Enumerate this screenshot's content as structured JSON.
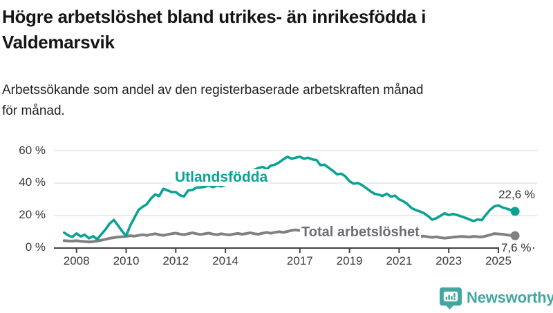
{
  "header": {
    "title_lines": [
      "Högre arbetslöshet bland utrikes- än inrikesfödda i",
      "Valdemarsvik"
    ],
    "subtitle_lines": [
      "Arbetssökande som andel av den registerbaserade arbetskraften månad",
      "för månad."
    ]
  },
  "footer": {
    "brand": "Newsworthy"
  },
  "chart_data": {
    "type": "line",
    "title": "Högre arbetslöshet bland utrikes- än inrikesfödda i Valdemarsvik",
    "subtitle": "Arbetssökande som andel av den registerbaserade arbetskraften månad för månad.",
    "unit": "%",
    "ylim": [
      0,
      60
    ],
    "grid": "horizontal",
    "legend_position": "inline-labels",
    "colors": {
      "foreign_born": "#0aa294",
      "total": "#818181",
      "grid": "#e0e0e0",
      "axis": "#414141"
    },
    "y_ticks": [
      {
        "value": 0,
        "label": "0 %"
      },
      {
        "value": 20,
        "label": "20 %"
      },
      {
        "value": 40,
        "label": "40 %"
      },
      {
        "value": 60,
        "label": "60 %"
      }
    ],
    "x_ticks": [
      {
        "year": 2008,
        "label": "2008"
      },
      {
        "year": 2010,
        "label": "2010"
      },
      {
        "year": 2012,
        "label": "2012"
      },
      {
        "year": 2014,
        "label": "2014"
      },
      {
        "year": 2017,
        "label": "2017"
      },
      {
        "year": 2019,
        "label": "2019"
      },
      {
        "year": 2021,
        "label": "2021"
      },
      {
        "year": 2023,
        "label": "2023"
      },
      {
        "year": 2025,
        "label": "2025"
      }
    ],
    "series": [
      {
        "name": "Utlandsfödda",
        "color": "#0aa294",
        "end_value": 22.6,
        "end_label": "22,6 %",
        "points": [
          [
            2007.5,
            9.5
          ],
          [
            2007.67,
            7.8
          ],
          [
            2007.83,
            6.8
          ],
          [
            2008.0,
            9.0
          ],
          [
            2008.17,
            7.2
          ],
          [
            2008.33,
            8.2
          ],
          [
            2008.5,
            6.0
          ],
          [
            2008.67,
            7.3
          ],
          [
            2008.83,
            5.4
          ],
          [
            2009.0,
            8.5
          ],
          [
            2009.17,
            11.5
          ],
          [
            2009.33,
            15.0
          ],
          [
            2009.5,
            17.3
          ],
          [
            2009.67,
            14.0
          ],
          [
            2009.83,
            10.5
          ],
          [
            2010.0,
            7.5
          ],
          [
            2010.17,
            14.0
          ],
          [
            2010.33,
            18.5
          ],
          [
            2010.5,
            23.5
          ],
          [
            2010.67,
            25.5
          ],
          [
            2010.83,
            27.0
          ],
          [
            2011.0,
            30.5
          ],
          [
            2011.17,
            33.0
          ],
          [
            2011.33,
            32.0
          ],
          [
            2011.5,
            36.5
          ],
          [
            2011.67,
            35.5
          ],
          [
            2011.83,
            34.5
          ],
          [
            2012.0,
            34.5
          ],
          [
            2012.17,
            32.5
          ],
          [
            2012.33,
            31.8
          ],
          [
            2012.5,
            35.5
          ],
          [
            2012.67,
            35.8
          ],
          [
            2012.83,
            37.2
          ],
          [
            2013.0,
            37.3
          ],
          [
            2013.17,
            37.8
          ],
          [
            2013.33,
            38.6
          ],
          [
            2013.5,
            37.5
          ],
          [
            2013.67,
            38.6
          ],
          [
            2013.83,
            38.0
          ],
          [
            2014.0,
            39.0
          ],
          [
            2014.17,
            40.2
          ],
          [
            2014.33,
            41.5
          ],
          [
            2014.5,
            43.0
          ],
          [
            2014.67,
            44.5
          ],
          [
            2014.83,
            46.0
          ],
          [
            2015.0,
            47.0
          ],
          [
            2015.17,
            48.2
          ],
          [
            2015.33,
            49.3
          ],
          [
            2015.5,
            50.0
          ],
          [
            2015.67,
            48.6
          ],
          [
            2015.83,
            50.8
          ],
          [
            2016.0,
            51.4
          ],
          [
            2016.17,
            52.8
          ],
          [
            2016.33,
            54.6
          ],
          [
            2016.5,
            56.2
          ],
          [
            2016.67,
            55.0
          ],
          [
            2016.83,
            55.6
          ],
          [
            2017.0,
            56.2
          ],
          [
            2017.17,
            55.0
          ],
          [
            2017.33,
            55.6
          ],
          [
            2017.5,
            54.6
          ],
          [
            2017.67,
            54.2
          ],
          [
            2017.83,
            51.0
          ],
          [
            2018.0,
            51.3
          ],
          [
            2018.17,
            49.3
          ],
          [
            2018.33,
            47.6
          ],
          [
            2018.5,
            45.4
          ],
          [
            2018.67,
            45.8
          ],
          [
            2018.83,
            44.2
          ],
          [
            2019.0,
            41.2
          ],
          [
            2019.17,
            39.6
          ],
          [
            2019.33,
            40.1
          ],
          [
            2019.5,
            38.8
          ],
          [
            2019.67,
            37.0
          ],
          [
            2019.83,
            35.1
          ],
          [
            2020.0,
            33.5
          ],
          [
            2020.17,
            32.9
          ],
          [
            2020.33,
            32.1
          ],
          [
            2020.5,
            33.5
          ],
          [
            2020.67,
            31.6
          ],
          [
            2020.83,
            32.3
          ],
          [
            2021.0,
            30.0
          ],
          [
            2021.17,
            28.8
          ],
          [
            2021.33,
            27.2
          ],
          [
            2021.5,
            24.6
          ],
          [
            2021.67,
            23.4
          ],
          [
            2021.83,
            22.6
          ],
          [
            2022.0,
            21.5
          ],
          [
            2022.17,
            19.6
          ],
          [
            2022.33,
            17.5
          ],
          [
            2022.5,
            18.4
          ],
          [
            2022.67,
            19.9
          ],
          [
            2022.83,
            21.4
          ],
          [
            2023.0,
            20.3
          ],
          [
            2023.17,
            21.0
          ],
          [
            2023.33,
            20.4
          ],
          [
            2023.5,
            19.5
          ],
          [
            2023.67,
            18.6
          ],
          [
            2023.83,
            17.6
          ],
          [
            2024.0,
            16.6
          ],
          [
            2024.17,
            17.6
          ],
          [
            2024.33,
            17.2
          ],
          [
            2024.5,
            20.6
          ],
          [
            2024.67,
            23.6
          ],
          [
            2024.83,
            25.6
          ],
          [
            2025.0,
            26.3
          ],
          [
            2025.17,
            25.0
          ],
          [
            2025.33,
            24.3
          ],
          [
            2025.5,
            23.4
          ],
          [
            2025.67,
            22.6
          ]
        ]
      },
      {
        "name": "Total arbetslöshet",
        "color": "#818181",
        "end_value": 7.6,
        "end_label": "7,6 %",
        "points": [
          [
            2007.5,
            4.6
          ],
          [
            2007.67,
            4.4
          ],
          [
            2007.83,
            4.3
          ],
          [
            2008.0,
            4.5
          ],
          [
            2008.17,
            4.2
          ],
          [
            2008.33,
            4.0
          ],
          [
            2008.5,
            3.8
          ],
          [
            2008.67,
            4.0
          ],
          [
            2008.83,
            4.3
          ],
          [
            2009.0,
            4.8
          ],
          [
            2009.17,
            5.4
          ],
          [
            2009.33,
            6.0
          ],
          [
            2009.5,
            6.4
          ],
          [
            2009.67,
            6.8
          ],
          [
            2009.83,
            7.0
          ],
          [
            2010.0,
            7.2
          ],
          [
            2010.17,
            7.6
          ],
          [
            2010.33,
            7.3
          ],
          [
            2010.5,
            7.8
          ],
          [
            2010.67,
            8.2
          ],
          [
            2010.83,
            7.8
          ],
          [
            2011.0,
            8.4
          ],
          [
            2011.17,
            8.8
          ],
          [
            2011.33,
            8.2
          ],
          [
            2011.5,
            7.8
          ],
          [
            2011.67,
            8.4
          ],
          [
            2011.83,
            8.8
          ],
          [
            2012.0,
            9.2
          ],
          [
            2012.17,
            8.6
          ],
          [
            2012.33,
            8.2
          ],
          [
            2012.5,
            8.8
          ],
          [
            2012.67,
            9.4
          ],
          [
            2012.83,
            8.8
          ],
          [
            2013.0,
            8.4
          ],
          [
            2013.17,
            8.8
          ],
          [
            2013.33,
            9.2
          ],
          [
            2013.5,
            8.6
          ],
          [
            2013.67,
            8.2
          ],
          [
            2013.83,
            8.8
          ],
          [
            2014.0,
            8.4
          ],
          [
            2014.17,
            8.1
          ],
          [
            2014.33,
            8.6
          ],
          [
            2014.5,
            9.0
          ],
          [
            2014.67,
            8.5
          ],
          [
            2014.83,
            8.9
          ],
          [
            2015.0,
            9.4
          ],
          [
            2015.17,
            8.8
          ],
          [
            2015.33,
            8.5
          ],
          [
            2015.5,
            9.1
          ],
          [
            2015.67,
            9.6
          ],
          [
            2015.83,
            9.1
          ],
          [
            2016.0,
            9.7
          ],
          [
            2016.17,
            10.1
          ],
          [
            2016.33,
            9.6
          ],
          [
            2016.5,
            10.2
          ],
          [
            2016.67,
            10.9
          ],
          [
            2016.83,
            11.2
          ],
          [
            2017.0,
            10.8
          ],
          [
            2017.17,
            11.3
          ],
          [
            2017.33,
            10.6
          ],
          [
            2017.5,
            10.9
          ],
          [
            2017.67,
            10.3
          ],
          [
            2017.83,
            9.9
          ],
          [
            2018.0,
            10.2
          ],
          [
            2018.17,
            9.6
          ],
          [
            2018.33,
            9.2
          ],
          [
            2018.5,
            9.6
          ],
          [
            2018.67,
            9.0
          ],
          [
            2018.83,
            8.7
          ],
          [
            2019.0,
            9.1
          ],
          [
            2019.17,
            8.6
          ],
          [
            2019.33,
            9.0
          ],
          [
            2019.5,
            8.5
          ],
          [
            2019.67,
            8.8
          ],
          [
            2019.83,
            8.4
          ],
          [
            2020.0,
            8.8
          ],
          [
            2020.17,
            9.4
          ],
          [
            2020.33,
            9.8
          ],
          [
            2020.5,
            9.5
          ],
          [
            2020.67,
            9.1
          ],
          [
            2020.83,
            9.4
          ],
          [
            2021.0,
            9.0
          ],
          [
            2021.17,
            8.6
          ],
          [
            2021.33,
            8.2
          ],
          [
            2021.5,
            7.8
          ],
          [
            2021.67,
            7.4
          ],
          [
            2021.83,
            7.1
          ],
          [
            2022.0,
            7.3
          ],
          [
            2022.17,
            6.9
          ],
          [
            2022.33,
            6.6
          ],
          [
            2022.5,
            6.9
          ],
          [
            2022.67,
            6.4
          ],
          [
            2022.83,
            6.1
          ],
          [
            2023.0,
            6.4
          ],
          [
            2023.17,
            6.7
          ],
          [
            2023.33,
            6.9
          ],
          [
            2023.5,
            7.2
          ],
          [
            2023.67,
            7.0
          ],
          [
            2023.83,
            6.8
          ],
          [
            2024.0,
            7.2
          ],
          [
            2024.17,
            7.0
          ],
          [
            2024.33,
            6.8
          ],
          [
            2024.5,
            7.4
          ],
          [
            2024.67,
            8.1
          ],
          [
            2024.83,
            8.9
          ],
          [
            2025.0,
            8.7
          ],
          [
            2025.17,
            8.5
          ],
          [
            2025.33,
            8.1
          ],
          [
            2025.5,
            7.8
          ],
          [
            2025.67,
            7.6
          ]
        ]
      }
    ]
  }
}
